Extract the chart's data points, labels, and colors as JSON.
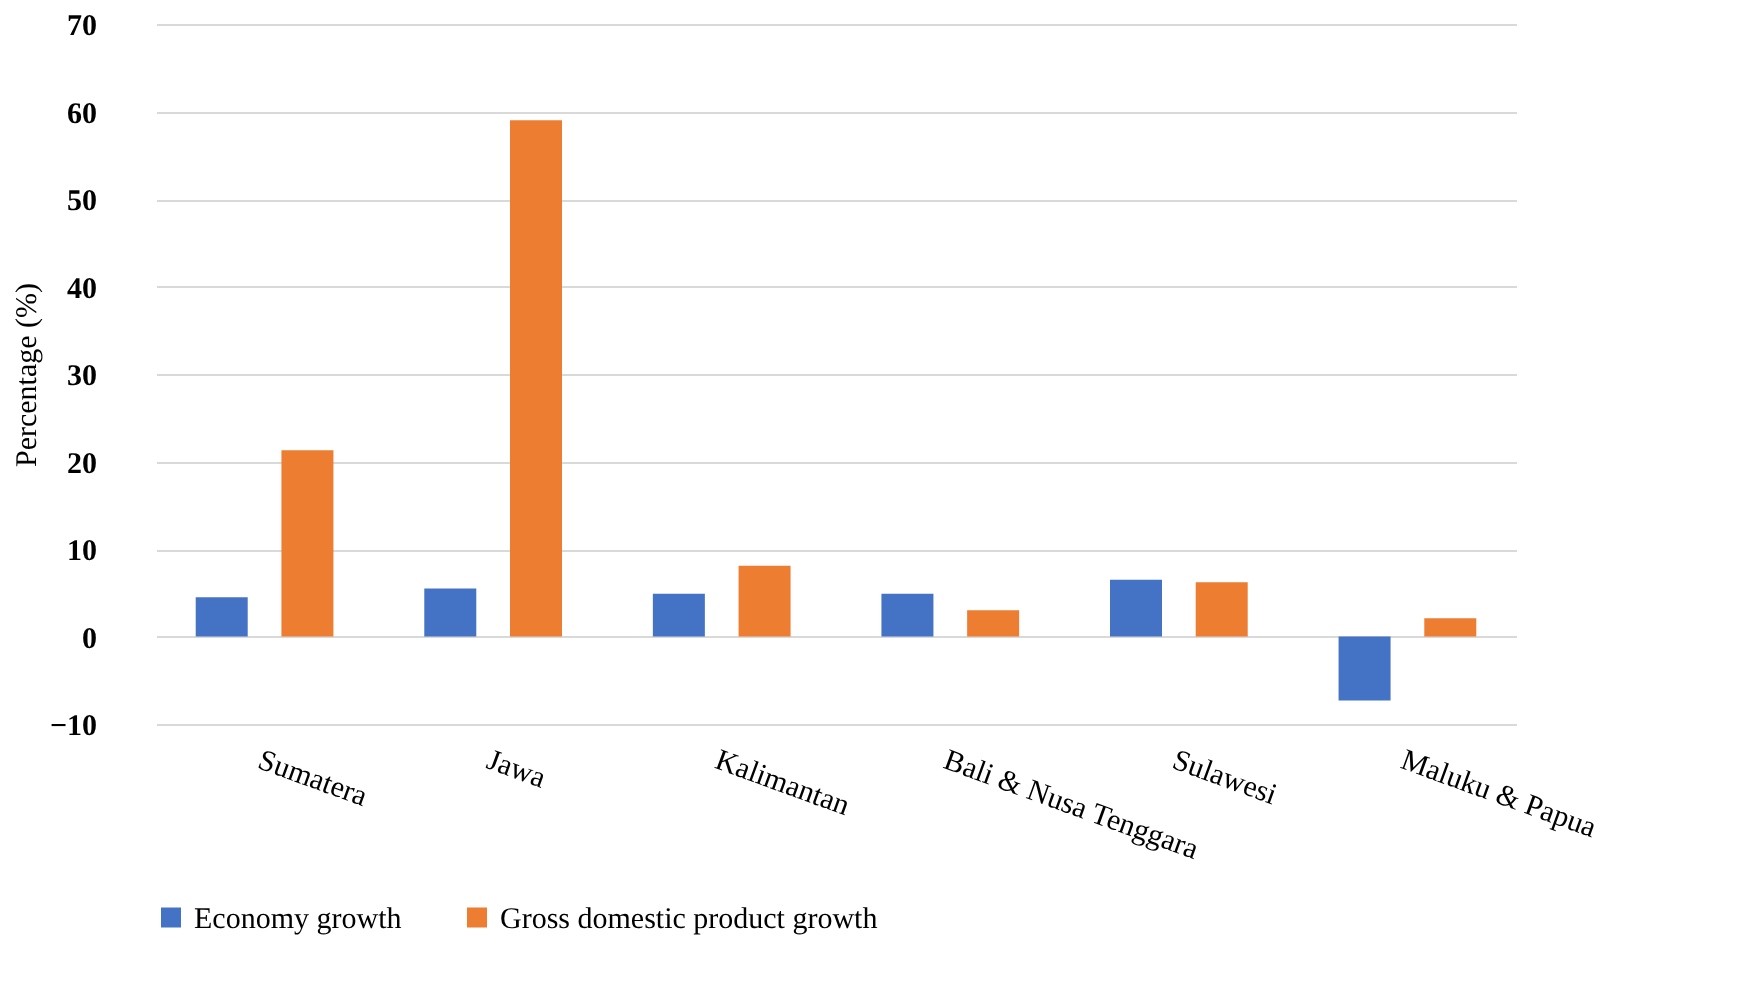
{
  "chart_data": {
    "type": "bar",
    "ylabel": "Percentage (%)",
    "categories": [
      "Sumatera",
      "Jawa",
      "Kalimantan",
      "Bali & Nusa Tenggara",
      "Sulawesi",
      "Maluku & Papua"
    ],
    "series": [
      {
        "name": "Economy growth",
        "color": "#4472c4",
        "values": [
          4.5,
          5.5,
          4.9,
          4.9,
          6.5,
          -7.3
        ]
      },
      {
        "name": "Gross domestic product growth",
        "color": "#ed7d31",
        "values": [
          21.3,
          59.0,
          8.1,
          3.0,
          6.2,
          2.1
        ]
      }
    ],
    "ylim": [
      -10,
      70
    ],
    "yticks": [
      -10,
      0,
      10,
      20,
      30,
      40,
      50,
      60,
      70
    ],
    "grid": "y",
    "legend": "bottom"
  }
}
